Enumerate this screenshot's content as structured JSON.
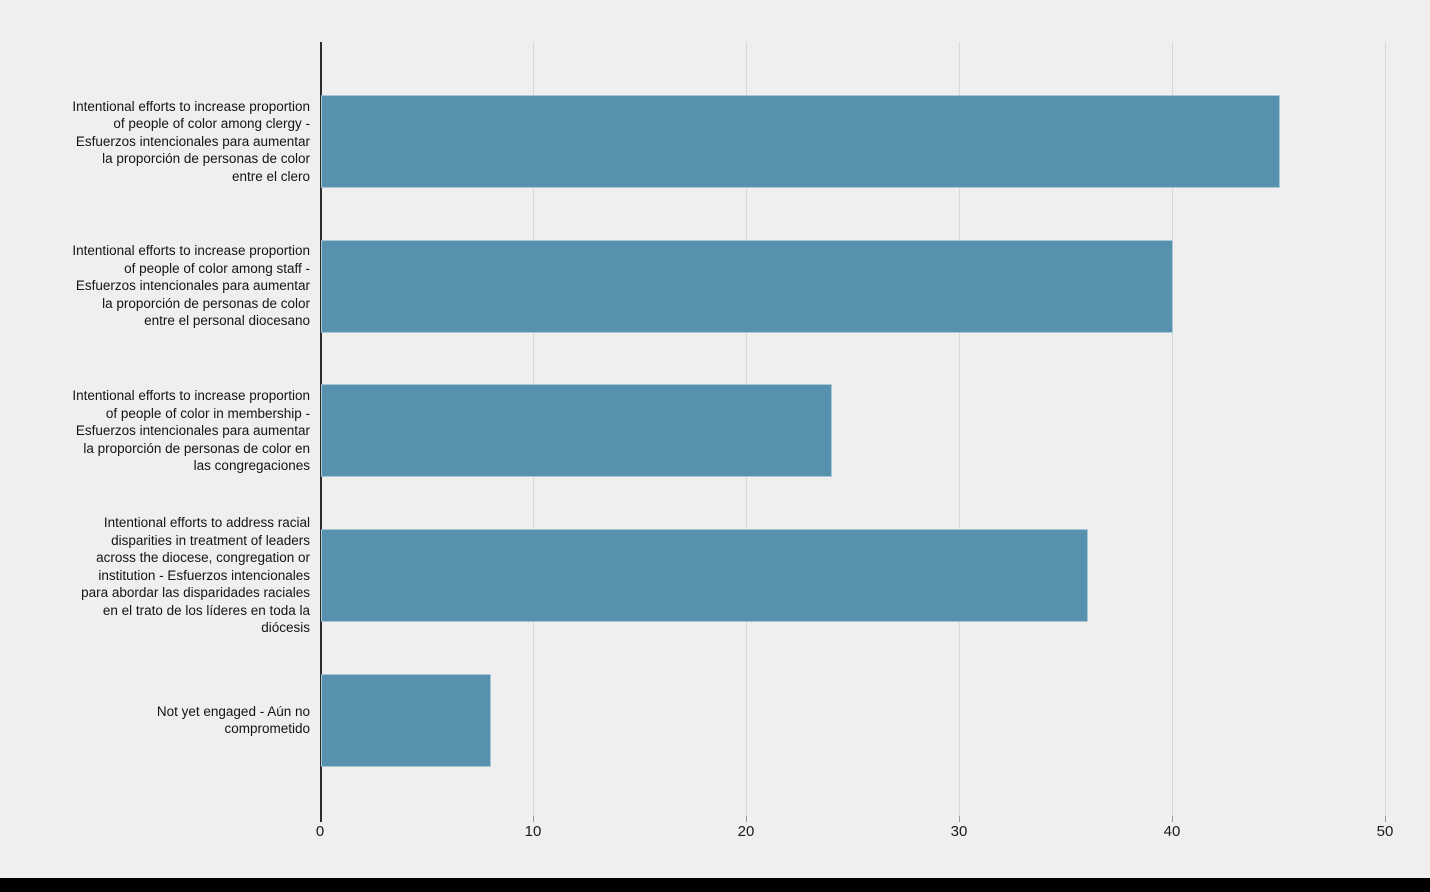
{
  "chart_data": {
    "type": "bar",
    "orientation": "horizontal",
    "title": "",
    "categories": [
      "Intentional efforts to increase proportion of people of color among clergy - Esfuerzos intencionales para aumentar la proporción de personas de color entre el clero",
      "Intentional efforts to increase proportion of people of color among staff - Esfuerzos intencionales para aumentar la proporción de personas de color entre el personal diocesano",
      "Intentional efforts to increase proportion of people of color in membership - Esfuerzos intencionales para aumentar la proporción de personas de color en las congregaciones",
      "Intentional efforts to address racial disparities in treatment of leaders across the diocese, congregation or institution - Esfuerzos intencionales para abordar las disparidades raciales en el trato de los líderes en toda la diócesis",
      "Not yet engaged - Aún no comprometido"
    ],
    "category_lines": [
      [
        "Intentional efforts to increase proportion",
        "of people of color among clergy -",
        "Esfuerzos intencionales para aumentar",
        "la proporción de personas de color",
        "entre el clero"
      ],
      [
        "Intentional efforts to increase proportion",
        "of people of color among staff -",
        "Esfuerzos intencionales para aumentar",
        "la proporción de personas de color",
        "entre el personal diocesano"
      ],
      [
        "Intentional efforts to increase proportion",
        "of people of color in membership -",
        "Esfuerzos intencionales para aumentar",
        "la proporción de personas de color en",
        "las congregaciones"
      ],
      [
        "Intentional efforts to address racial",
        "disparities in treatment of leaders",
        "across the diocese, congregation or",
        "institution - Esfuerzos intencionales",
        "para abordar las disparidades raciales",
        "en el trato de los líderes en toda la",
        "diócesis"
      ],
      [
        "Not yet engaged - Aún no",
        "comprometido"
      ]
    ],
    "values": [
      45,
      40,
      24,
      36,
      8
    ],
    "xlim": [
      0,
      50
    ],
    "xticks": [
      0,
      10,
      20,
      30,
      40,
      50
    ],
    "grid": true,
    "legend": "none",
    "bar_color": "#5791ad",
    "bar_border_color": "#a8c6d7",
    "background_color": "#efefef",
    "gridline_color": "#d8d8d8",
    "axis_line_color": "#2b2b2b"
  }
}
